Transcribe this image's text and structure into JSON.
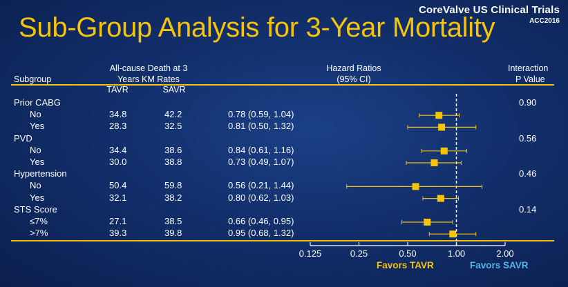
{
  "brand": {
    "line1": "CoreValve US Clinical Trials",
    "line2": "ACC2016"
  },
  "title": "Sub-Group Analysis for 3-Year Mortality",
  "headers": {
    "subgroup": "Subgroup",
    "rates_line1": "All-cause Death at 3",
    "rates_line2": "Years KM Rates",
    "tavr": "TAVR",
    "savr": "SAVR",
    "hr_line1": "Hazard Ratios",
    "hr_line2": "(95% CI)",
    "interaction_line1": "Interaction",
    "interaction_line2": "P Value"
  },
  "rows": [
    {
      "label": "Prior CABG",
      "indent": false,
      "tavr": "",
      "savr": "",
      "hr_text": "",
      "p": "0.90"
    },
    {
      "label": "No",
      "indent": true,
      "tavr": "34.8",
      "savr": "42.2",
      "hr_text": "0.78 (0.59, 1.04)",
      "p": ""
    },
    {
      "label": "Yes",
      "indent": true,
      "tavr": "28.3",
      "savr": "32.5",
      "hr_text": "0.81 (0.50, 1.32)",
      "p": ""
    },
    {
      "label": "PVD",
      "indent": false,
      "tavr": "",
      "savr": "",
      "hr_text": "",
      "p": "0.56"
    },
    {
      "label": "No",
      "indent": true,
      "tavr": "34.4",
      "savr": "38.6",
      "hr_text": "0.84 (0.61, 1.16)",
      "p": ""
    },
    {
      "label": "Yes",
      "indent": true,
      "tavr": "30.0",
      "savr": "38.8",
      "hr_text": "0.73 (0.49, 1.07)",
      "p": ""
    },
    {
      "label": "Hypertension",
      "indent": false,
      "tavr": "",
      "savr": "",
      "hr_text": "",
      "p": "0.46"
    },
    {
      "label": "No",
      "indent": true,
      "tavr": "50.4",
      "savr": "59.8",
      "hr_text": "0.56 (0.21, 1.44)",
      "p": ""
    },
    {
      "label": "Yes",
      "indent": true,
      "tavr": "32.1",
      "savr": "38.2",
      "hr_text": "0.80 (0.62, 1.03)",
      "p": ""
    },
    {
      "label": "STS Score",
      "indent": false,
      "tavr": "",
      "savr": "",
      "hr_text": "",
      "p": "0.14"
    },
    {
      "label": "≤7%",
      "indent": true,
      "tavr": "27.1",
      "savr": "38.5",
      "hr_text": "0.66 (0.46, 0.95)",
      "p": ""
    },
    {
      "label": ">7%",
      "indent": true,
      "tavr": "39.3",
      "savr": "39.8",
      "hr_text": "0.95 (0.68, 1.32)",
      "p": ""
    }
  ],
  "favors": {
    "left": "Favors  TAVR",
    "right": "Favors SAVR"
  },
  "colors": {
    "accent": "#f5c40a",
    "favor_right": "#56b4e9",
    "text": "#ffffff"
  },
  "chart_data": {
    "type": "forest",
    "scale": "log",
    "xlim": [
      0.125,
      2.0
    ],
    "xticks": [
      0.125,
      0.25,
      0.5,
      1.0,
      2.0
    ],
    "xtick_labels": [
      "0.125",
      "0.25",
      "0.50",
      "1.00",
      "2.00"
    ],
    "reference_line": 1.0,
    "points": [
      {
        "row": 1,
        "group": "Prior CABG",
        "label": "No",
        "hr": 0.78,
        "lo": 0.59,
        "hi": 1.04
      },
      {
        "row": 2,
        "group": "Prior CABG",
        "label": "Yes",
        "hr": 0.81,
        "lo": 0.5,
        "hi": 1.32
      },
      {
        "row": 4,
        "group": "PVD",
        "label": "No",
        "hr": 0.84,
        "lo": 0.61,
        "hi": 1.16
      },
      {
        "row": 5,
        "group": "PVD",
        "label": "Yes",
        "hr": 0.73,
        "lo": 0.49,
        "hi": 1.07
      },
      {
        "row": 7,
        "group": "Hypertension",
        "label": "No",
        "hr": 0.56,
        "lo": 0.21,
        "hi": 1.44
      },
      {
        "row": 8,
        "group": "Hypertension",
        "label": "Yes",
        "hr": 0.8,
        "lo": 0.62,
        "hi": 1.03
      },
      {
        "row": 10,
        "group": "STS Score",
        "label": "≤7%",
        "hr": 0.66,
        "lo": 0.46,
        "hi": 0.95
      },
      {
        "row": 11,
        "group": "STS Score",
        "label": ">7%",
        "hr": 0.95,
        "lo": 0.68,
        "hi": 1.32
      }
    ]
  }
}
